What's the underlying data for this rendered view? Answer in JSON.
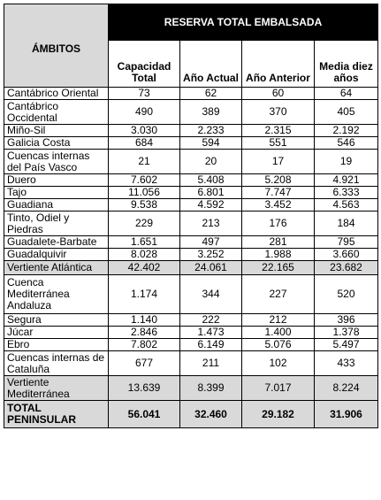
{
  "table": {
    "header": {
      "ambitos": "ÁMBITOS",
      "group": "RESERVA TOTAL EMBALSADA",
      "columns": [
        "Capacidad Total",
        "Año Actual",
        "Año Anterior",
        "Media diez años"
      ]
    },
    "rows": [
      {
        "name": "Cantábrico Oriental",
        "values": [
          "73",
          "62",
          "60",
          "64"
        ],
        "style": "normal"
      },
      {
        "name": "Cantábrico Occidental",
        "values": [
          "490",
          "389",
          "370",
          "405"
        ],
        "style": "normal"
      },
      {
        "name": "Miño-Sil",
        "values": [
          "3.030",
          "2.233",
          "2.315",
          "2.192"
        ],
        "style": "normal"
      },
      {
        "name": "Galicia Costa",
        "values": [
          "684",
          "594",
          "551",
          "546"
        ],
        "style": "normal"
      },
      {
        "name": "Cuencas internas del País Vasco",
        "values": [
          "21",
          "20",
          "17",
          "19"
        ],
        "style": "normal"
      },
      {
        "name": "Duero",
        "values": [
          "7.602",
          "5.408",
          "5.208",
          "4.921"
        ],
        "style": "normal"
      },
      {
        "name": "Tajo",
        "values": [
          "11.056",
          "6.801",
          "7.747",
          "6.333"
        ],
        "style": "normal"
      },
      {
        "name": "Guadiana",
        "values": [
          "9.538",
          "4.592",
          "3.452",
          "4.563"
        ],
        "style": "normal"
      },
      {
        "name": "Tinto, Odiel y Piedras",
        "values": [
          "229",
          "213",
          "176",
          "184"
        ],
        "style": "normal"
      },
      {
        "name": "Guadalete-Barbate",
        "values": [
          "1.651",
          "497",
          "281",
          "795"
        ],
        "style": "normal"
      },
      {
        "name": "Guadalquivir",
        "values": [
          "8.028",
          "3.252",
          "1.988",
          "3.660"
        ],
        "style": "normal"
      },
      {
        "name": "Vertiente Atlántica",
        "values": [
          "42.402",
          "24.061",
          "22.165",
          "23.682"
        ],
        "style": "summary"
      },
      {
        "name": "Cuenca Mediterránea Andaluza",
        "values": [
          "1.174",
          "344",
          "227",
          "520"
        ],
        "style": "normal"
      },
      {
        "name": "Segura",
        "values": [
          "1.140",
          "222",
          "212",
          "396"
        ],
        "style": "normal"
      },
      {
        "name": "Júcar",
        "values": [
          "2.846",
          "1.473",
          "1.400",
          "1.378"
        ],
        "style": "normal"
      },
      {
        "name": "Ebro",
        "values": [
          "7.802",
          "6.149",
          "5.076",
          "5.497"
        ],
        "style": "normal"
      },
      {
        "name": "Cuencas internas de Cataluña",
        "values": [
          "677",
          "211",
          "102",
          "433"
        ],
        "style": "normal"
      },
      {
        "name": "Vertiente Mediterránea",
        "values": [
          "13.639",
          "8.399",
          "7.017",
          "8.224"
        ],
        "style": "summary"
      },
      {
        "name": "TOTAL PENINSULAR",
        "values": [
          "56.041",
          "32.460",
          "29.182",
          "31.906"
        ],
        "style": "total"
      }
    ]
  }
}
